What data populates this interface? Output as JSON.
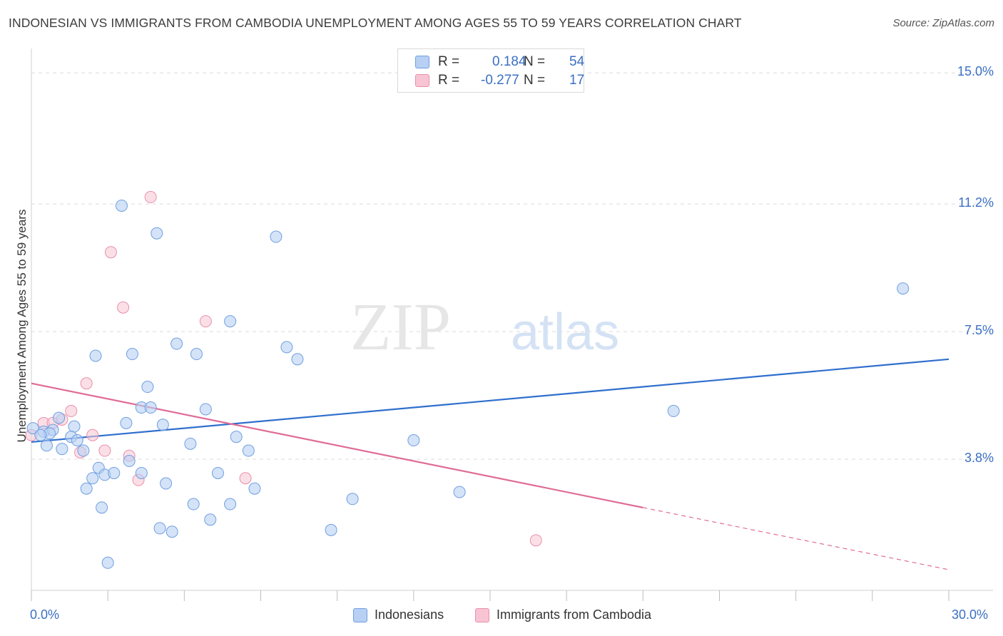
{
  "title": "INDONESIAN VS IMMIGRANTS FROM CAMBODIA UNEMPLOYMENT AMONG AGES 55 TO 59 YEARS CORRELATION CHART",
  "source": "Source: ZipAtlas.com",
  "watermark": {
    "part1": "ZIP",
    "part2": "atlas"
  },
  "colors": {
    "blue_fill": "#b7d0f3",
    "blue_stroke": "#6f9fe0",
    "blue_line": "#2f6fce",
    "pink_fill": "#f8c4d3",
    "pink_stroke": "#ea8fac",
    "pink_line": "#e06b96",
    "grid": "#dadada",
    "axis_text": "#3b6fc4"
  },
  "legend": {
    "rows": [
      {
        "r_label": "R =",
        "r_value": "0.184",
        "n_label": "N =",
        "n_value": "54"
      },
      {
        "r_label": "R =",
        "r_value": "-0.277",
        "n_label": "N =",
        "n_value": "17"
      }
    ]
  },
  "bottom_legend": {
    "series1": "Indonesians",
    "series2": "Immigrants from Cambodia"
  },
  "chart_data": {
    "type": "scatter",
    "title": "INDONESIAN VS IMMIGRANTS FROM CAMBODIA UNEMPLOYMENT AMONG AGES 55 TO 59 YEARS CORRELATION CHART",
    "xlabel": "",
    "ylabel": "Unemployment Among Ages 55 to 59 years",
    "xlim": [
      0,
      30
    ],
    "ylim": [
      0,
      15.5
    ],
    "x_tick_labels": [
      "0.0%",
      "30.0%"
    ],
    "y_ticks": [
      3.8,
      7.5,
      11.2,
      15.0
    ],
    "y_tick_labels": [
      "3.8%",
      "7.5%",
      "11.2%",
      "15.0%"
    ],
    "grid": true,
    "legend_position": "top-center",
    "series": [
      {
        "name": "Indonesians",
        "R": 0.184,
        "N": 54,
        "trend": {
          "x": [
            0,
            30
          ],
          "y": [
            4.3,
            6.7
          ]
        },
        "points": [
          [
            0.05,
            4.7
          ],
          [
            0.4,
            4.6
          ],
          [
            0.5,
            4.2
          ],
          [
            0.7,
            4.65
          ],
          [
            0.9,
            5.0
          ],
          [
            1.0,
            4.1
          ],
          [
            1.4,
            4.75
          ],
          [
            1.3,
            4.45
          ],
          [
            1.5,
            4.35
          ],
          [
            1.7,
            4.05
          ],
          [
            1.8,
            2.95
          ],
          [
            2.0,
            3.25
          ],
          [
            2.1,
            6.8
          ],
          [
            2.3,
            2.4
          ],
          [
            2.2,
            3.55
          ],
          [
            2.4,
            3.35
          ],
          [
            2.5,
            0.8
          ],
          [
            2.7,
            3.4
          ],
          [
            2.95,
            11.15
          ],
          [
            3.1,
            4.85
          ],
          [
            3.2,
            3.75
          ],
          [
            3.3,
            6.85
          ],
          [
            3.6,
            5.3
          ],
          [
            3.6,
            3.4
          ],
          [
            3.8,
            5.9
          ],
          [
            3.9,
            5.3
          ],
          [
            4.1,
            10.35
          ],
          [
            4.2,
            1.8
          ],
          [
            4.3,
            4.8
          ],
          [
            4.4,
            3.1
          ],
          [
            4.6,
            1.7
          ],
          [
            4.75,
            7.15
          ],
          [
            5.2,
            4.25
          ],
          [
            5.3,
            2.5
          ],
          [
            5.4,
            6.85
          ],
          [
            5.7,
            5.25
          ],
          [
            5.85,
            2.05
          ],
          [
            6.1,
            3.4
          ],
          [
            6.5,
            7.8
          ],
          [
            6.5,
            2.5
          ],
          [
            6.7,
            4.45
          ],
          [
            7.1,
            4.05
          ],
          [
            7.3,
            2.95
          ],
          [
            8.0,
            10.25
          ],
          [
            8.35,
            7.05
          ],
          [
            8.7,
            6.7
          ],
          [
            9.8,
            1.75
          ],
          [
            10.5,
            2.65
          ],
          [
            12.5,
            4.35
          ],
          [
            14.0,
            2.85
          ],
          [
            21.0,
            5.2
          ],
          [
            28.5,
            8.75
          ],
          [
            0.6,
            4.55
          ],
          [
            0.3,
            4.5
          ]
        ]
      },
      {
        "name": "Immigrants from Cambodia",
        "R": -0.277,
        "N": 17,
        "trend": {
          "x": [
            0,
            20
          ],
          "y": [
            6.0,
            2.4
          ]
        },
        "trend_dashed": {
          "x": [
            20,
            30
          ],
          "y": [
            2.4,
            0.6
          ]
        },
        "points": [
          [
            0.0,
            4.5
          ],
          [
            0.4,
            4.85
          ],
          [
            0.7,
            4.85
          ],
          [
            1.0,
            4.95
          ],
          [
            1.3,
            5.2
          ],
          [
            1.6,
            4.0
          ],
          [
            1.8,
            6.0
          ],
          [
            2.0,
            4.5
          ],
          [
            2.4,
            4.05
          ],
          [
            2.6,
            9.8
          ],
          [
            3.0,
            8.2
          ],
          [
            3.2,
            3.9
          ],
          [
            3.5,
            3.2
          ],
          [
            3.9,
            11.4
          ],
          [
            5.7,
            7.8
          ],
          [
            7.0,
            3.25
          ],
          [
            16.5,
            1.45
          ]
        ]
      }
    ]
  }
}
